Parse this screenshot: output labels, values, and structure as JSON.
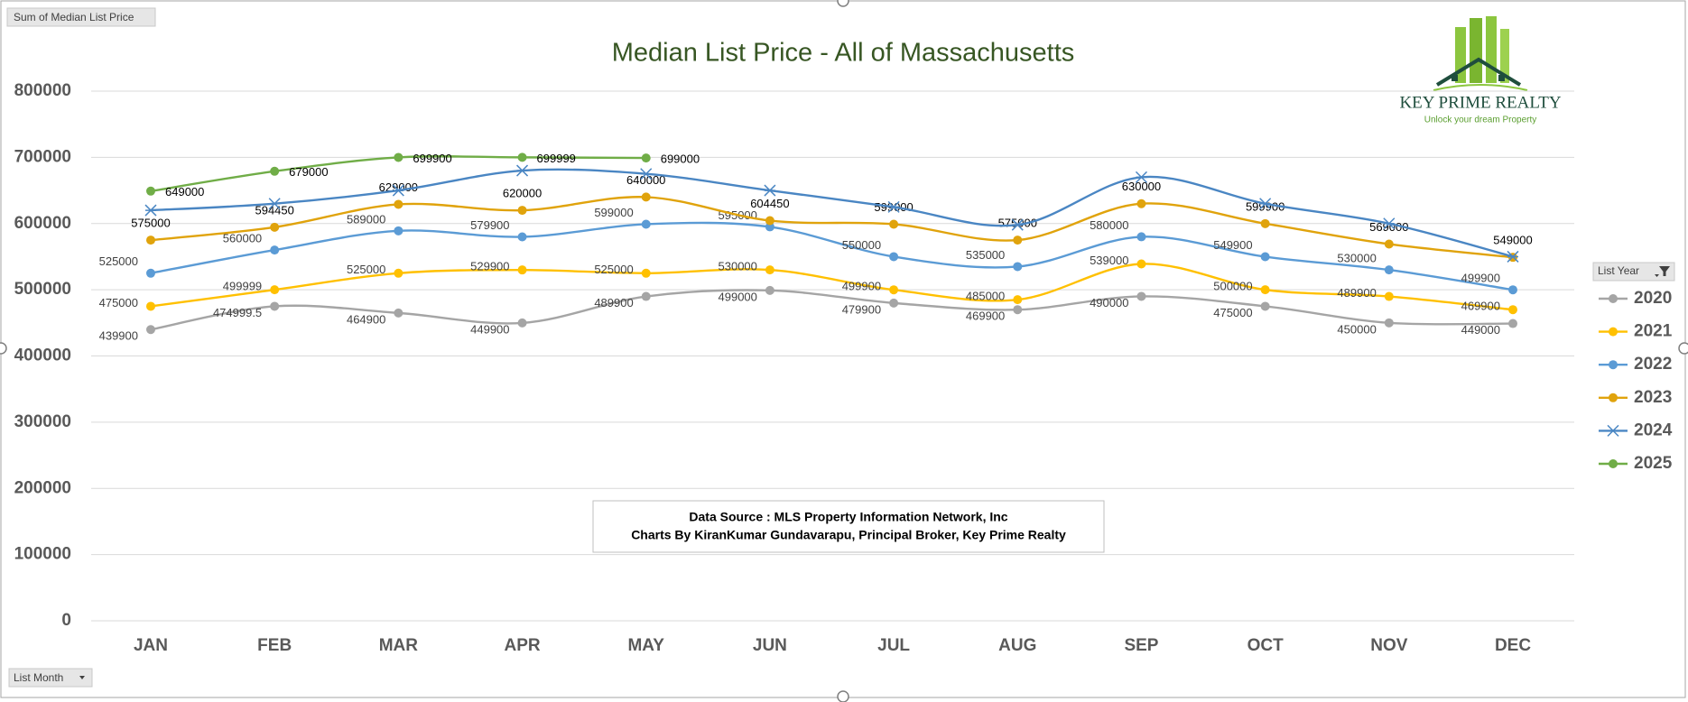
{
  "chart_data": {
    "type": "line",
    "title": "Median List Price - All of Massachusetts",
    "value_field": "Sum of Median List Price",
    "axis_field": "List Month",
    "legend_title": "List Year",
    "legend": "right",
    "grid": true,
    "smooth": true,
    "categories": [
      "JAN",
      "FEB",
      "MAR",
      "APR",
      "MAY",
      "JUN",
      "JUL",
      "AUG",
      "SEP",
      "OCT",
      "NOV",
      "DEC"
    ],
    "ylim": [
      0,
      800000
    ],
    "yticks": [
      0,
      100000,
      200000,
      300000,
      400000,
      500000,
      600000,
      700000,
      800000
    ],
    "series": [
      {
        "name": "2020",
        "color": "#a5a5a5",
        "marker": "circle",
        "labels": true,
        "values": [
          439900,
          474999.5,
          464900,
          449900,
          489900,
          499000,
          479900,
          469900,
          490000,
          475000,
          450000,
          449000
        ]
      },
      {
        "name": "2021",
        "color": "#ffc000",
        "marker": "circle",
        "labels": true,
        "values": [
          475000,
          499999,
          525000,
          529900,
          525000,
          530000,
          499900,
          485000,
          539000,
          500000,
          489900,
          469900
        ]
      },
      {
        "name": "2022",
        "color": "#5b9bd5",
        "marker": "circle",
        "labels": true,
        "values": [
          525000,
          560000,
          589000,
          579900,
          599000,
          595000,
          550000,
          535000,
          580000,
          549900,
          530000,
          499900
        ]
      },
      {
        "name": "2023",
        "color": "#e0a30c",
        "marker": "circle",
        "labels": true,
        "values": [
          575000,
          594450,
          629000,
          620000,
          640000,
          604450,
          599000,
          575000,
          630000,
          599900,
          569000,
          549000
        ]
      },
      {
        "name": "2024",
        "color": "#4a86c3",
        "marker": "star",
        "labels": false,
        "values": [
          620000,
          630000,
          650000,
          680000,
          675000,
          650000,
          625000,
          598000,
          670000,
          630000,
          600000,
          550000
        ]
      },
      {
        "name": "2025",
        "color": "#70ad47",
        "marker": "circle",
        "labels": true,
        "values": [
          649000,
          679000,
          699900,
          699999,
          699000,
          null,
          null,
          null,
          null,
          null,
          null,
          null
        ]
      }
    ],
    "source_note": [
      "Data Source : MLS Property Information Network, Inc",
      "Charts By KiranKumar Gundavarapu, Principal Broker, Key Prime Realty"
    ],
    "logo": {
      "name": "KEY PRIME REALTY",
      "tagline": "Unlock your dream Property"
    }
  }
}
